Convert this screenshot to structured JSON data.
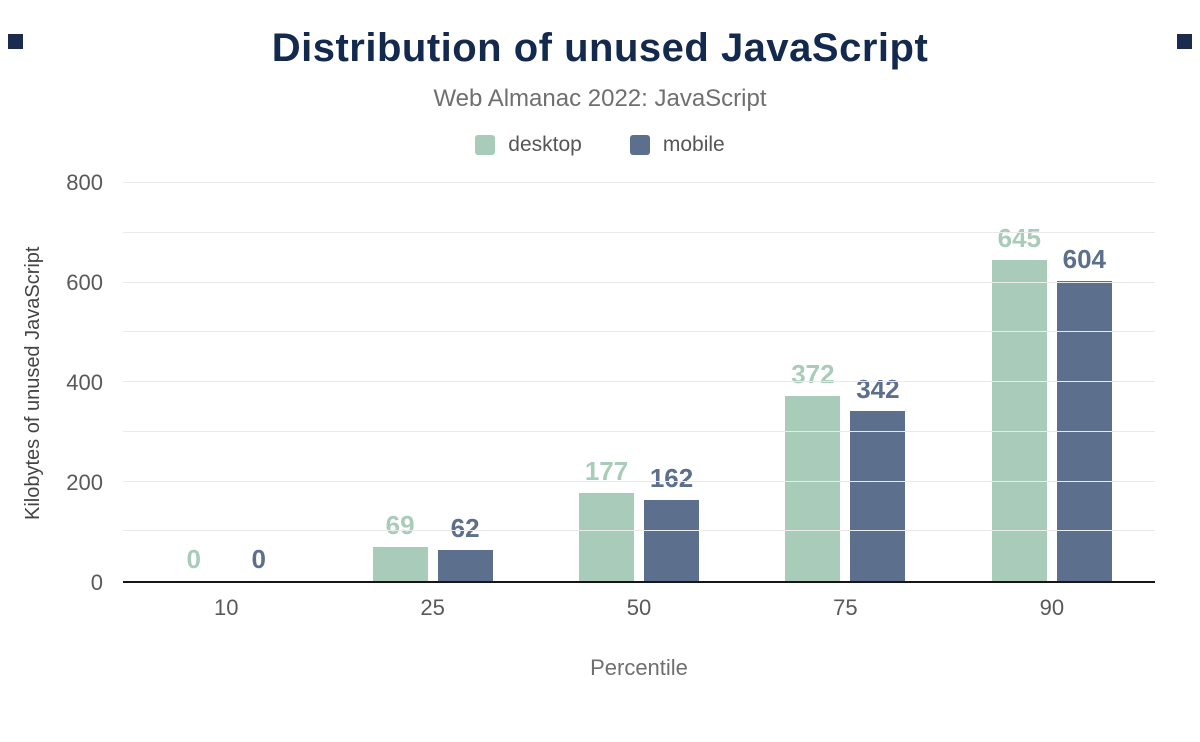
{
  "header": {
    "title": "Distribution of unused JavaScript",
    "subtitle": "Web Almanac 2022: JavaScript"
  },
  "chart_data": {
    "type": "bar",
    "title": "Distribution of unused JavaScript",
    "subtitle": "Web Almanac 2022: JavaScript",
    "categories": [
      "10",
      "25",
      "50",
      "75",
      "90"
    ],
    "series": [
      {
        "name": "desktop",
        "color": "#a8ccb9",
        "values": [
          0,
          69,
          177,
          372,
          645
        ]
      },
      {
        "name": "mobile",
        "color": "#5c6f8d",
        "values": [
          0,
          62,
          162,
          342,
          604
        ]
      }
    ],
    "xlabel": "Percentile",
    "ylabel": "Kilobytes of unused JavaScript",
    "ylim": [
      0,
      800
    ],
    "grid_step": 100,
    "label_step": 200,
    "grid": "on",
    "legend_position": "top"
  },
  "colors": {
    "title": "#132a4e",
    "subtitle": "#6f6f6f",
    "axis_text": "#595959",
    "gridline": "#eaeaea",
    "corner_mark": "#1b2b4d"
  }
}
